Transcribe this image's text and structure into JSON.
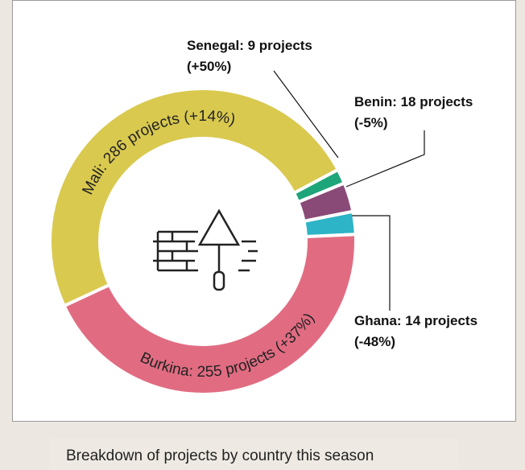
{
  "chart_data": {
    "type": "donut",
    "values": [
      9,
      18,
      14,
      255,
      286
    ],
    "value_labels": [
      "Senegal: 9 projects (+50%)",
      "Benin: 18 projects (-5%)",
      "Ghana: 14 projects (-48%)",
      "Burkina: 255 projects (+37%)",
      "Mali: 286 projects (+14%)"
    ],
    "colors": [
      "#1ea57a",
      "#8a4a77",
      "#2db4c6",
      "#e16c82",
      "#d9c94f"
    ]
  },
  "caption": "Breakdown of projects by country this season"
}
